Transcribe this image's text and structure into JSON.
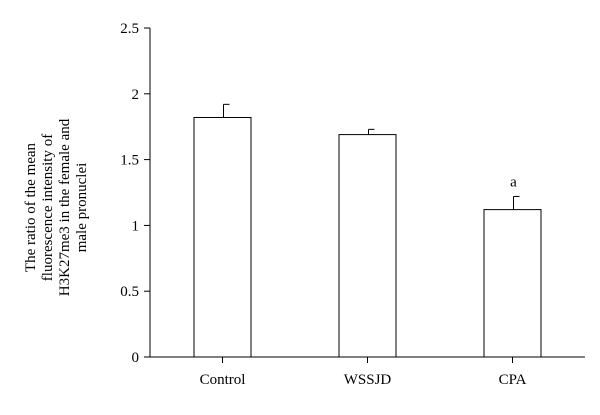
{
  "chart_data": {
    "type": "bar",
    "title": "",
    "xlabel": "",
    "ylabel_lines": [
      "The ratio of the mean",
      "fluorescence intensity of",
      "H3K27me3 in the female and",
      "male pronuclei"
    ],
    "categories": [
      "Control",
      "WSSJD",
      "CPA"
    ],
    "values": [
      1.82,
      1.69,
      1.12
    ],
    "errors": [
      0.1,
      0.04,
      0.1
    ],
    "annotations": [
      "",
      "",
      "a"
    ],
    "ylim": [
      0,
      2.5
    ],
    "yticks": [
      "0",
      "0.5",
      "1",
      "1.5",
      "2",
      "2.5"
    ],
    "ytick_values": [
      0,
      0.5,
      1,
      1.5,
      2,
      2.5
    ],
    "grid": false,
    "colors": {
      "bar_fill": "#ffffff",
      "bar_stroke": "#000000",
      "axis": "#000000"
    }
  }
}
